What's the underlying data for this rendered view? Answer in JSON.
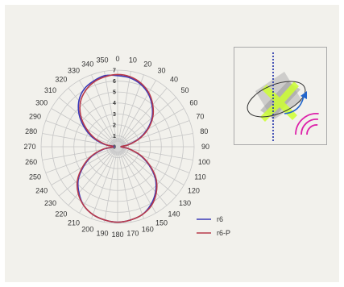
{
  "chart_data": {
    "type": "polar-line",
    "angle_unit": "degrees",
    "angle_ticks": [
      "0",
      "10",
      "20",
      "30",
      "40",
      "50",
      "60",
      "70",
      "80",
      "90",
      "100",
      "110",
      "120",
      "130",
      "140",
      "150",
      "160",
      "170",
      "180",
      "190",
      "200",
      "210",
      "220",
      "230",
      "240",
      "250",
      "260",
      "270",
      "280",
      "290",
      "300",
      "310",
      "320",
      "330",
      "340",
      "350"
    ],
    "radial_ticks": [
      "0",
      "1",
      "2",
      "3",
      "4",
      "5",
      "6",
      "7"
    ],
    "rlim": [
      0,
      7
    ],
    "grid": true,
    "legend_position": "bottom-right",
    "series": [
      {
        "name": "r6",
        "color": "#3a3ab8",
        "angles": [
          0,
          10,
          20,
          30,
          40,
          50,
          60,
          70,
          80,
          90,
          100,
          110,
          120,
          130,
          140,
          150,
          160,
          170,
          180,
          190,
          200,
          210,
          220,
          230,
          240,
          250,
          260,
          270,
          280,
          290,
          300,
          310,
          320,
          330,
          340,
          350
        ],
        "values": [
          6.5,
          6.4,
          6.1,
          5.6,
          4.9,
          4.1,
          3.1,
          2.0,
          0.9,
          0.3,
          1.0,
          2.1,
          3.3,
          4.5,
          5.4,
          6.1,
          6.6,
          6.8,
          6.9,
          6.8,
          6.6,
          6.2,
          5.5,
          4.7,
          3.6,
          2.5,
          1.3,
          0.3,
          1.2,
          2.4,
          3.5,
          4.6,
          5.5,
          6.1,
          6.4,
          6.6
        ]
      },
      {
        "name": "r6-P",
        "color": "#b83a4a",
        "angles": [
          0,
          10,
          20,
          30,
          40,
          50,
          60,
          70,
          80,
          90,
          100,
          110,
          120,
          130,
          140,
          150,
          160,
          170,
          180,
          190,
          200,
          210,
          220,
          230,
          240,
          250,
          260,
          270,
          280,
          290,
          300,
          310,
          320,
          330,
          340,
          350
        ],
        "values": [
          6.6,
          6.5,
          6.2,
          5.7,
          5.0,
          4.2,
          3.2,
          2.1,
          1.0,
          0.3,
          1.0,
          2.2,
          3.4,
          4.6,
          5.5,
          6.2,
          6.6,
          6.8,
          6.9,
          6.8,
          6.6,
          6.2,
          5.6,
          4.8,
          3.7,
          2.6,
          1.4,
          0.4,
          1.1,
          2.2,
          3.3,
          4.4,
          5.3,
          5.9,
          6.3,
          6.5
        ]
      }
    ]
  },
  "inset": {
    "axis_color": "#2233aa",
    "highlight_color": "#ccff33",
    "arrow_color": "#2266cc",
    "wave_color": "#dd22aa",
    "icon": "antenna-orientation-icon"
  }
}
